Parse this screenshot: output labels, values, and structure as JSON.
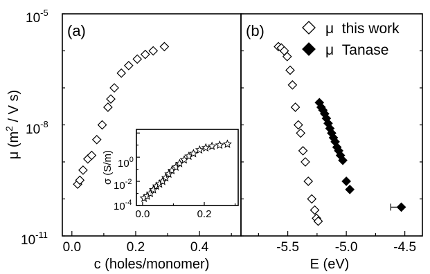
{
  "chart_data": [
    {
      "type": "scatter",
      "panel_label": "(a)",
      "xlabel": "c (holes/monomer)",
      "ylabel": "μ (m2 / V s)",
      "ylabel_main": "μ (m",
      "ylabel_sup": "2",
      "ylabel_rest": " / V s)",
      "xlim": [
        -0.03,
        0.53
      ],
      "ylim": [
        1e-11,
        1e-05
      ],
      "yscale": "log",
      "x_ticks": [
        "0.0",
        "0.2",
        "0.4"
      ],
      "y_ticks": [
        {
          "base": "10",
          "exp": "-5"
        },
        {
          "base": "10",
          "exp": "-8"
        },
        {
          "base": "10",
          "exp": "-11"
        }
      ],
      "series": [
        {
          "marker": "open-diamond",
          "x": [
            0.018,
            0.025,
            0.035,
            0.05,
            0.062,
            0.078,
            0.095,
            0.113,
            0.122,
            0.133,
            0.155,
            0.178,
            0.205,
            0.23,
            0.255,
            0.29
          ],
          "y": [
            2.5e-10,
            3.2e-10,
            6e-10,
            1.2e-09,
            1.5e-09,
            4e-09,
            1e-08,
            3e-08,
            5e-08,
            1e-07,
            2.5e-07,
            4e-07,
            6e-07,
            8e-07,
            1e-06,
            1.3e-06
          ]
        }
      ],
      "inset": {
        "type": "scatter",
        "ylabel": "σ (S/m)",
        "xlim": [
          -0.02,
          0.31
        ],
        "ylim": [
          0.0001,
          200
        ],
        "yscale": "log",
        "x_ticks": [
          "0.0",
          "0.2"
        ],
        "y_ticks": [
          {
            "base": "10",
            "exp": "0",
            "value": 1
          },
          {
            "base": "10",
            "exp": "-2",
            "value": 0.01
          },
          {
            "base": "10",
            "exp": "-4",
            "value": 0.0001
          }
        ],
        "series": [
          {
            "marker": "open-star",
            "x": [
              0.005,
              0.015,
              0.025,
              0.035,
              0.045,
              0.055,
              0.065,
              0.075,
              0.085,
              0.095,
              0.108,
              0.12,
              0.135,
              0.15,
              0.165,
              0.185,
              0.205,
              0.225,
              0.25,
              0.275
            ],
            "y": [
              0.0004,
              0.0006,
              0.001,
              0.002,
              0.004,
              0.006,
              0.01,
              0.02,
              0.04,
              0.08,
              0.15,
              0.3,
              0.6,
              1.2,
              2,
              4,
              6,
              8,
              10,
              12
            ]
          }
        ]
      }
    },
    {
      "type": "scatter",
      "panel_label": "(b)",
      "xlabel": "E (eV)",
      "xlim": [
        -5.9,
        -4.35
      ],
      "ylim": [
        1e-11,
        1e-05
      ],
      "yscale": "log",
      "x_ticks": [
        "-5.5",
        "-5.0",
        "-4.5"
      ],
      "legend_position": "top-right",
      "series": [
        {
          "name": "μ  this work",
          "marker": "open-diamond",
          "x": [
            -5.58,
            -5.555,
            -5.53,
            -5.505,
            -5.48,
            -5.46,
            -5.435,
            -5.41,
            -5.39,
            -5.37,
            -5.35,
            -5.325,
            -5.295,
            -5.27,
            -5.255,
            -5.24
          ],
          "y": [
            1.3e-06,
            1.2e-06,
            1e-06,
            7e-07,
            3e-07,
            1.2e-07,
            3e-08,
            1e-08,
            6e-09,
            2e-09,
            1e-09,
            3e-10,
            1e-10,
            5e-11,
            3e-11,
            2.5e-11
          ]
        },
        {
          "name": "μ  Tanase",
          "marker": "filled-diamond",
          "x": [
            -5.23,
            -5.215,
            -5.2,
            -5.185,
            -5.17,
            -5.155,
            -5.14,
            -5.125,
            -5.11,
            -5.095,
            -5.08,
            -5.065,
            -5.05,
            -5.03,
            -5.0,
            -4.97,
            -4.53
          ],
          "y": [
            4e-08,
            3e-08,
            2.5e-08,
            2e-08,
            1.5e-08,
            1.1e-08,
            8e-09,
            6e-09,
            4.5e-09,
            3.5e-09,
            2.5e-09,
            2e-09,
            1.5e-09,
            1.1e-09,
            3e-10,
            1.8e-10,
            6e-11
          ],
          "error_bar_point": {
            "x": -4.53,
            "y": 6e-11,
            "xerr_low": 0.09
          }
        }
      ]
    }
  ]
}
